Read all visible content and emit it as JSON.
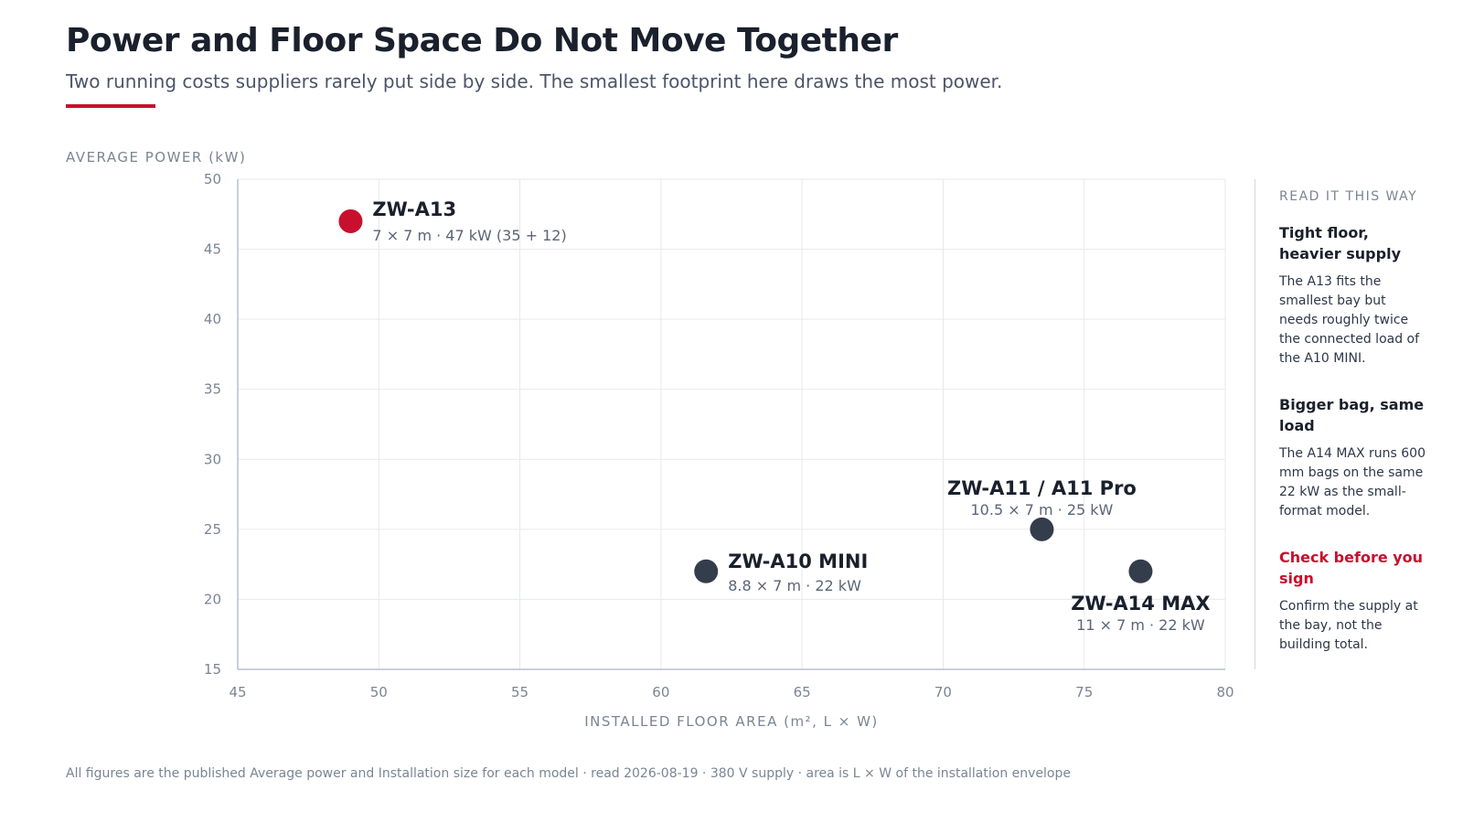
{
  "header": {
    "title": "Power and Floor Space Do Not Move Together",
    "subtitle": "Two running costs suppliers rarely put side by side. The smallest footprint here draws the most power."
  },
  "colors": {
    "accent": "#c8102e",
    "point": "#343d4b",
    "grid": "#e6e9ee",
    "axis": "#b7c0cc"
  },
  "chart_data": {
    "type": "scatter",
    "title": "",
    "xlabel": "INSTALLED FLOOR AREA (m², L × W)",
    "ylabel": "AVERAGE POWER (kW)",
    "xlim": [
      45,
      80
    ],
    "ylim": [
      15,
      50
    ],
    "xticks": [
      45,
      50,
      55,
      60,
      65,
      70,
      75,
      80
    ],
    "yticks": [
      15,
      20,
      25,
      30,
      35,
      40,
      45,
      50
    ],
    "grid": true,
    "points": [
      {
        "name": "ZW-A13",
        "x": 49,
        "y": 47,
        "detail": "7 × 7 m · 47 kW (35 + 12)",
        "highlight": true
      },
      {
        "name": "ZW-A10 MINI",
        "x": 61.6,
        "y": 22,
        "detail": "8.8 × 7 m · 22 kW",
        "highlight": false
      },
      {
        "name": "ZW-A11 / A11 Pro",
        "x": 73.5,
        "y": 25,
        "detail": "10.5 × 7 m · 25 kW",
        "highlight": false
      },
      {
        "name": "ZW-A14 MAX",
        "x": 77,
        "y": 22,
        "detail": "11 × 7 m · 22 kW",
        "highlight": false
      }
    ]
  },
  "sidebar": {
    "heading": "READ IT THIS WAY",
    "notes": [
      {
        "title": "Tight floor, heavier supply",
        "body": "The A13 fits the smallest bay but needs roughly twice the connected load of the A10 MINI.",
        "emphasis": false
      },
      {
        "title": "Bigger bag, same load",
        "body": "The A14 MAX runs 600 mm bags on the same 22 kW as the small-format model.",
        "emphasis": false
      },
      {
        "title": "Check before you sign",
        "body": "Confirm the supply at the bay, not the building total.",
        "emphasis": true
      }
    ]
  },
  "footer": {
    "note": "All figures are the published Average power and Installation size for each model · read 2026-08-19 · 380 V supply · area is L × W of the installation envelope"
  }
}
